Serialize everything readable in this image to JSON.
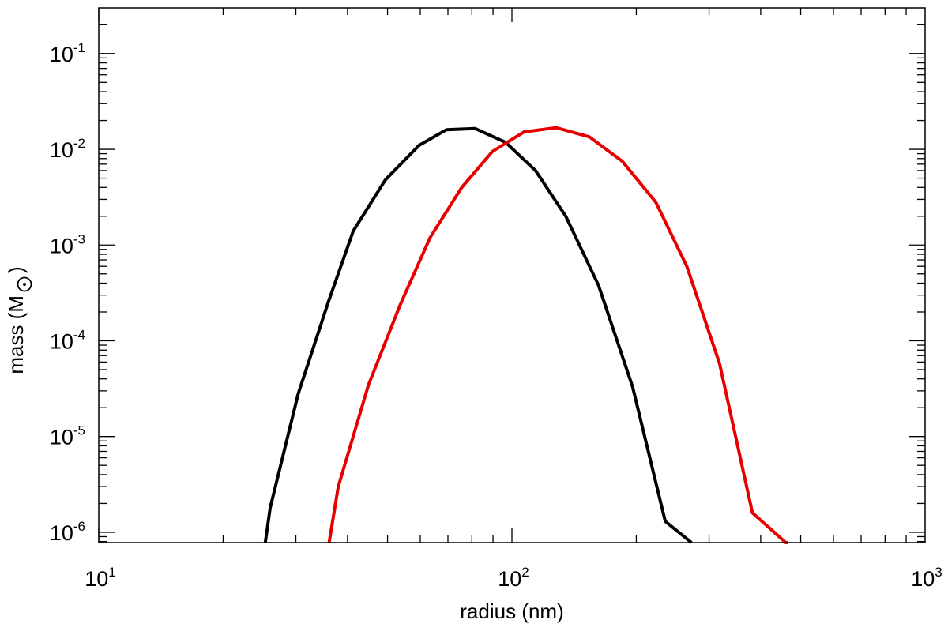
{
  "chart_data": {
    "type": "line",
    "xlabel": "radius (nm)",
    "ylabel_main": "mass (M",
    "ylabel_close": ")",
    "ylabel_symbol": "sun-symbol",
    "xscale": "log",
    "yscale": "log",
    "xlim": [
      10,
      1000
    ],
    "ylim": [
      7.8e-07,
      0.3
    ],
    "grid": false,
    "x_ticks": [
      {
        "value": 10,
        "base": "10",
        "exp": "1"
      },
      {
        "value": 100,
        "base": "10",
        "exp": "2"
      },
      {
        "value": 1000,
        "base": "10",
        "exp": "3"
      }
    ],
    "y_ticks": [
      {
        "value": 1e-06,
        "base": "10",
        "exp": "-6"
      },
      {
        "value": 1e-05,
        "base": "10",
        "exp": "-5"
      },
      {
        "value": 0.0001,
        "base": "10",
        "exp": "-4"
      },
      {
        "value": 0.001,
        "base": "10",
        "exp": "-3"
      },
      {
        "value": 0.01,
        "base": "10",
        "exp": "-2"
      },
      {
        "value": 0.1,
        "base": "10",
        "exp": "-1"
      }
    ],
    "series": [
      {
        "color": "#000000",
        "x": [
          25.3,
          26.0,
          30.4,
          35.9,
          41.3,
          49.4,
          59.6,
          69.4,
          81.4,
          96.6,
          114.0,
          135.0,
          162.0,
          196.0,
          235.0,
          272.0
        ],
        "y": [
          7.8e-07,
          1.8e-06,
          2.8e-05,
          0.00025,
          0.0014,
          0.0048,
          0.011,
          0.016,
          0.0165,
          0.0118,
          0.006,
          0.002,
          0.00038,
          3.3e-05,
          1.3e-06,
          7.8e-07
        ]
      },
      {
        "color": "#e80000",
        "x": [
          36.1,
          38.0,
          45.0,
          53.7,
          63.4,
          75.6,
          89.7,
          107.0,
          128.0,
          154.0,
          185.0,
          223.0,
          265.0,
          318.0,
          382.0,
          460.0,
          465.0
        ],
        "y": [
          7.8e-07,
          3e-06,
          3.5e-05,
          0.00024,
          0.0012,
          0.004,
          0.0095,
          0.0152,
          0.0168,
          0.0135,
          0.0075,
          0.0028,
          0.0006,
          5.8e-05,
          1.6e-06,
          7.8e-07,
          7.8e-07
        ]
      }
    ]
  }
}
